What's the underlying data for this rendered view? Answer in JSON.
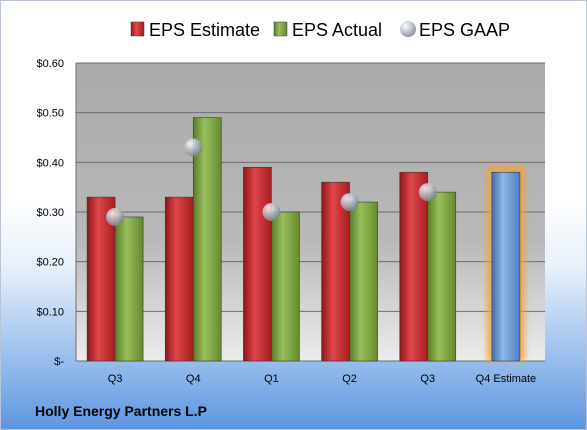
{
  "company": "Holly Energy Partners L.P",
  "chart_data": {
    "type": "bar",
    "categories": [
      "Q3",
      "Q4",
      "Q1",
      "Q2",
      "Q3",
      "Q4 Estimate"
    ],
    "series": [
      {
        "name": "EPS Estimate",
        "kind": "bar",
        "color": "#c0282c",
        "values": [
          0.33,
          0.33,
          0.39,
          0.36,
          0.38,
          null
        ]
      },
      {
        "name": "EPS Actual",
        "kind": "bar",
        "color": "#79a040",
        "values": [
          0.29,
          0.49,
          0.3,
          0.32,
          0.34,
          null
        ]
      },
      {
        "name": "EPS GAAP",
        "kind": "marker",
        "color": "#a9b3bf",
        "values": [
          0.29,
          0.43,
          0.3,
          0.32,
          0.34,
          null
        ]
      },
      {
        "name": "",
        "kind": "highlight-bar",
        "color": "#6a9cd8",
        "values": [
          null,
          null,
          null,
          null,
          null,
          0.38
        ]
      }
    ],
    "y_ticks": [
      {
        "value": 0.6,
        "label": "$0.60"
      },
      {
        "value": 0.5,
        "label": "$0.50"
      },
      {
        "value": 0.4,
        "label": "$0.40"
      },
      {
        "value": 0.3,
        "label": "$0.30"
      },
      {
        "value": 0.2,
        "label": "$0.20"
      },
      {
        "value": 0.1,
        "label": "$0.10"
      },
      {
        "value": 0.0,
        "label": "$-"
      }
    ],
    "ylim": [
      0,
      0.6
    ],
    "grid": true,
    "legend_position": "top"
  }
}
